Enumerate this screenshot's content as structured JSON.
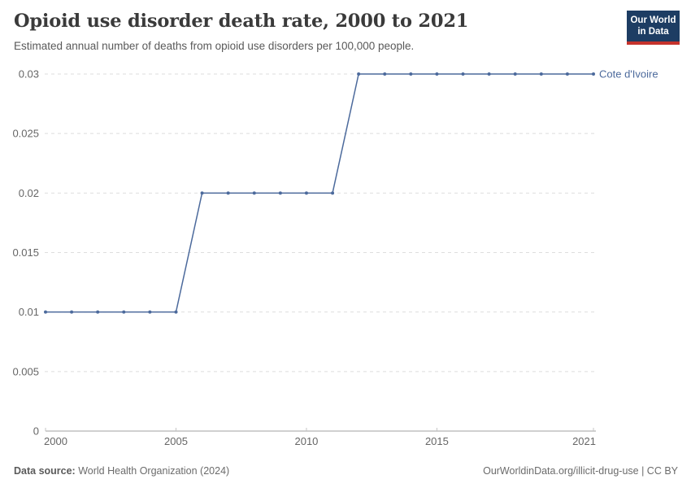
{
  "header": {
    "title": "Opioid use disorder death rate, 2000 to 2021",
    "subtitle": "Estimated annual number of deaths from opioid use disorders per 100,000 people."
  },
  "logo": {
    "line1": "Our World",
    "line2": "in Data",
    "bg_color": "#1D3D63",
    "bar_color": "#C5332C"
  },
  "chart_data": {
    "type": "line",
    "title": "Opioid use disorder death rate, 2000 to 2021",
    "xlabel": "",
    "ylabel": "Estimated annual number of deaths from opioid use disorders per 100,000 people",
    "x": [
      2000,
      2001,
      2002,
      2003,
      2004,
      2005,
      2006,
      2007,
      2008,
      2009,
      2010,
      2011,
      2012,
      2013,
      2014,
      2015,
      2016,
      2017,
      2018,
      2019,
      2020,
      2021
    ],
    "series": [
      {
        "name": "Cote d'Ivoire",
        "values": [
          0.01,
          0.01,
          0.01,
          0.01,
          0.01,
          0.01,
          0.02,
          0.02,
          0.02,
          0.02,
          0.02,
          0.02,
          0.03,
          0.03,
          0.03,
          0.03,
          0.03,
          0.03,
          0.03,
          0.03,
          0.03,
          0.03
        ]
      }
    ],
    "x_range": [
      2000,
      2021
    ],
    "y_range": [
      0,
      0.03
    ],
    "x_ticks": [
      {
        "v": 2000,
        "label": "2000"
      },
      {
        "v": 2005,
        "label": "2005"
      },
      {
        "v": 2010,
        "label": "2010"
      },
      {
        "v": 2015,
        "label": "2015"
      },
      {
        "v": 2021,
        "label": "2021"
      }
    ],
    "y_ticks": [
      {
        "v": 0,
        "label": "0"
      },
      {
        "v": 0.005,
        "label": "0.005"
      },
      {
        "v": 0.01,
        "label": "0.01"
      },
      {
        "v": 0.015,
        "label": "0.015"
      },
      {
        "v": 0.02,
        "label": "0.02"
      },
      {
        "v": 0.025,
        "label": "0.025"
      },
      {
        "v": 0.03,
        "label": "0.03"
      }
    ],
    "grid": "horizontal-dashed",
    "legend_position": "right-end-label",
    "line_color": "#4C6A9C",
    "label_color": "#4C6A9C",
    "grid_color": "#dedede",
    "axis_color": "#a0a0a0"
  },
  "footer": {
    "data_source_label": "Data source:",
    "data_source_value": " World Health Organization (2024)",
    "attribution": "OurWorldinData.org/illicit-drug-use | CC BY"
  }
}
